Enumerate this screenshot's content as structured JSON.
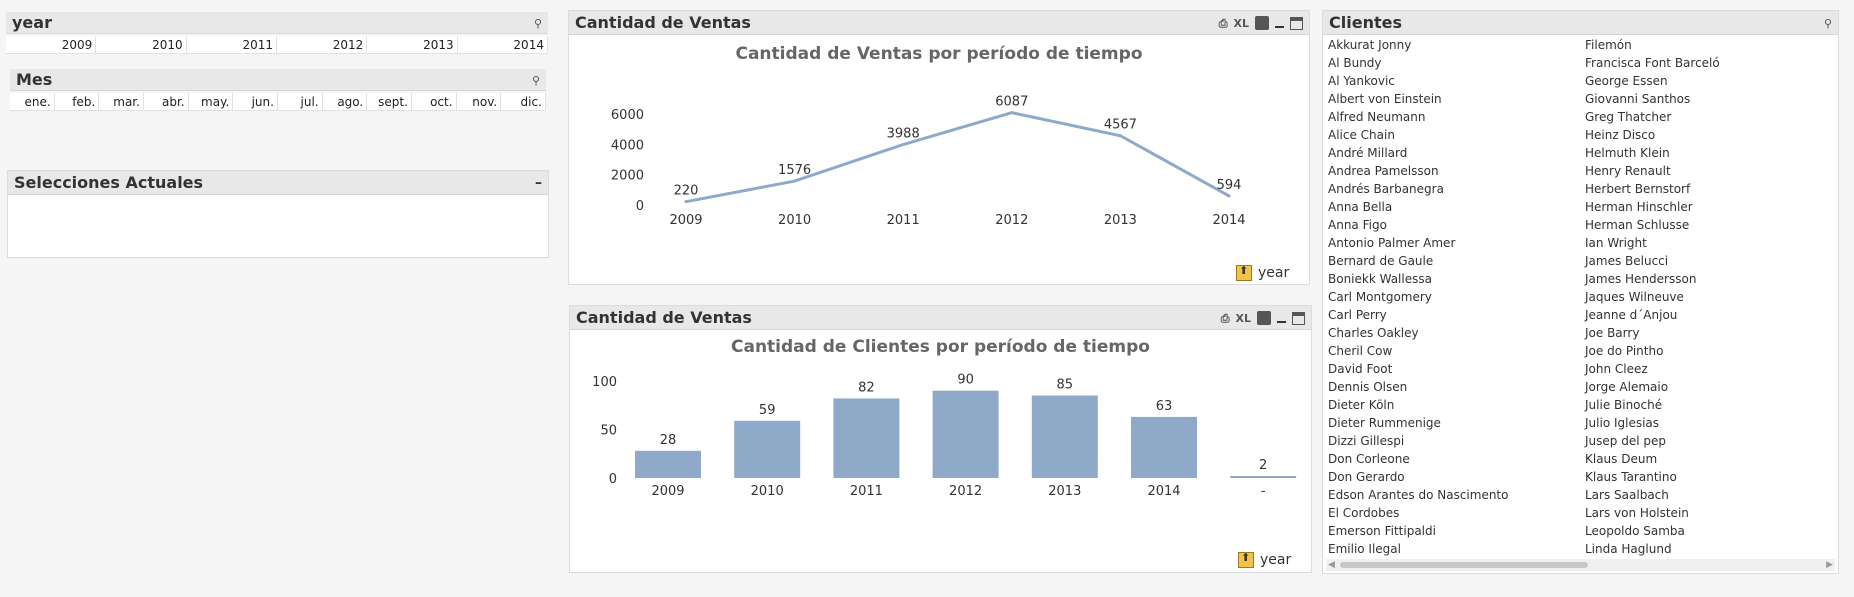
{
  "year_box": {
    "title": "year",
    "values": [
      "2009",
      "2010",
      "2011",
      "2012",
      "2013",
      "2014"
    ]
  },
  "mes_box": {
    "title": "Mes",
    "values": [
      "ene.",
      "feb.",
      "mar.",
      "abr.",
      "may.",
      "jun.",
      "jul.",
      "ago.",
      "sept.",
      "oct.",
      "nov.",
      "dic."
    ]
  },
  "current_selections": {
    "title": "Selecciones Actuales",
    "minimize_label": "–"
  },
  "ventas_chart": {
    "box_title": "Cantidad de Ventas",
    "xl_label": "XL",
    "dimension_label": "year",
    "chart_data": {
      "type": "line",
      "title": "Cantidad de Ventas por período de tiempo",
      "categories": [
        "2009",
        "2010",
        "2011",
        "2012",
        "2013",
        "2014"
      ],
      "values": [
        220,
        1576,
        3988,
        6087,
        4567,
        594
      ],
      "data_labels": [
        "220",
        "1576",
        "3988",
        "6087",
        "4567",
        "594"
      ],
      "yticks": [
        "0",
        "2000",
        "4000",
        "6000"
      ],
      "ylim": [
        0,
        6500
      ],
      "color": "#8fa9c8"
    }
  },
  "clientes_chart": {
    "box_title": "Cantidad de Ventas",
    "xl_label": "XL",
    "dimension_label": "year",
    "chart_data": {
      "type": "bar",
      "title": "Cantidad de Clientes por período de tiempo",
      "categories": [
        "2009",
        "2010",
        "2011",
        "2012",
        "2013",
        "2014",
        "-"
      ],
      "values": [
        28,
        59,
        82,
        90,
        85,
        63,
        2
      ],
      "data_labels": [
        "28",
        "59",
        "82",
        "90",
        "85",
        "63",
        "2"
      ],
      "yticks": [
        "0",
        "50",
        "100"
      ],
      "ylim": [
        0,
        100
      ],
      "color": "#8fa9c8"
    }
  },
  "clientes_box": {
    "title": "Clientes",
    "col1": [
      "Akkurat Jonny",
      "Al Bundy",
      "Al Yankovic",
      "Albert von Einstein",
      "Alfred Neumann",
      "Alice Chain",
      "André Millard",
      "Andrea Pamelsson",
      "Andrés Barbanegra",
      "Anna Bella",
      "Anna Figo",
      "Antonio Palmer Amer",
      "Bernard de Gaule",
      "Boniekk Wallessa",
      "Carl Montgomery",
      "Carl Perry",
      "Charles Oakley",
      "Cheril Cow",
      "David Foot",
      "Dennis Olsen",
      "Dieter Köln",
      "Dieter Rummenige",
      "Dizzi Gillespi",
      "Don Corleone",
      "Don Gerardo",
      "Edson Arantes do Nascimento",
      "El Cordobes",
      "Emerson Fittipaldi",
      "Emilio Ilegal"
    ],
    "col2": [
      "Filemón",
      "Francisca Font Barceló",
      "George Essen",
      "Giovanni Santhos",
      "Greg Thatcher",
      "Heinz Disco",
      "Helmuth Klein",
      "Henry Renault",
      "Herbert Bernstorf",
      "Herman Hinschler",
      "Herman Schlusse",
      "Ian Wright",
      "James Belucci",
      "James Hendersson",
      "Jaques Wilneuve",
      "Jeanne d´Anjou",
      "Joe Barry",
      "Joe do Pintho",
      "John Cleez",
      "Jorge Alemaio",
      "Julie Binoché",
      "Julio Iglesias",
      "Jusep del pep",
      "Klaus Deum",
      "Klaus Tarantino",
      "Lars Saalbach",
      "Lars von Holstein",
      "Leopoldo Samba",
      "Linda Haglund"
    ]
  }
}
